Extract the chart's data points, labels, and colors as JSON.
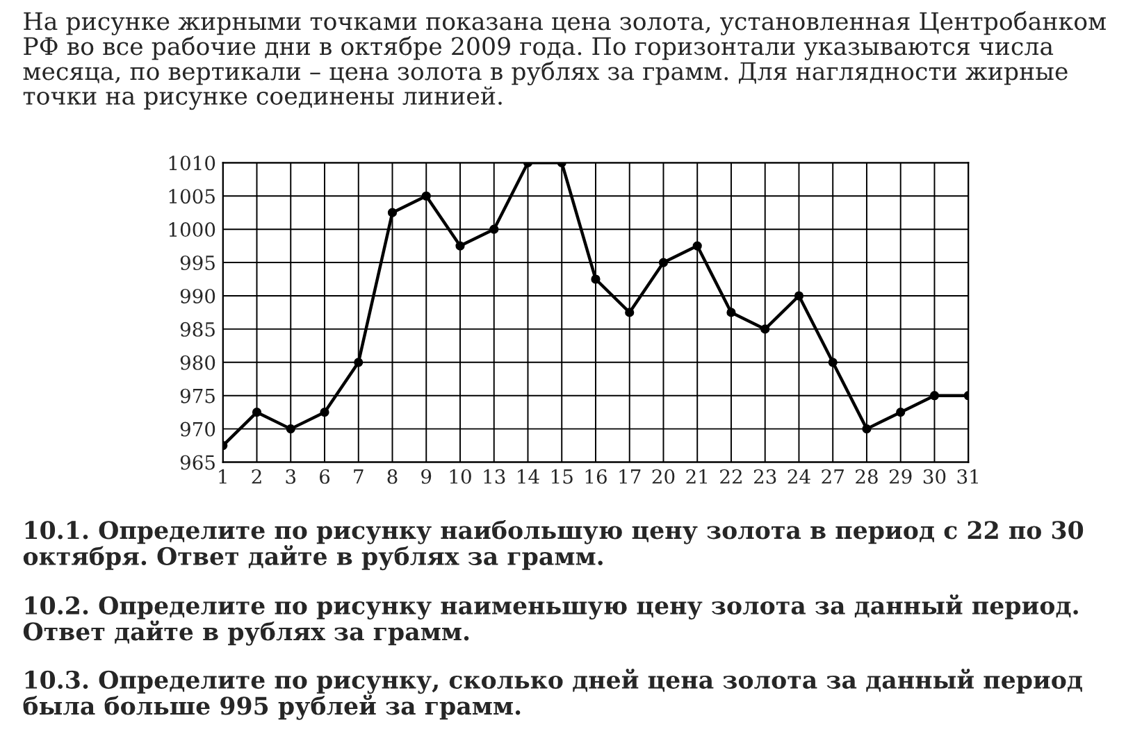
{
  "chart_data": {
    "type": "line",
    "title": "На рисунке жирными точками показана цена золота, установленная Центробанком РФ во все рабочие дни в октябре 2009 года. По горизонтали указываются числа месяца, по вертикали – цена золота в рублях за грамм. Для наглядности жирные точки на рисунке соединены линией.",
    "categories": [
      "1",
      "2",
      "3",
      "6",
      "7",
      "8",
      "9",
      "10",
      "13",
      "14",
      "15",
      "16",
      "17",
      "20",
      "21",
      "22",
      "23",
      "24",
      "27",
      "28",
      "29",
      "30",
      "31"
    ],
    "series": [
      {
        "color": "#000000",
        "values": [
          967.5,
          972.5,
          970,
          972.5,
          980,
          1002.5,
          1005,
          997.5,
          1000,
          1010,
          1010,
          992.5,
          987.5,
          995,
          997.5,
          987.5,
          985,
          990,
          980,
          970,
          972.5,
          975,
          975
        ]
      }
    ],
    "ylim": [
      965,
      1010
    ],
    "yticks": [
      965,
      970,
      975,
      980,
      985,
      990,
      995,
      1000,
      1005,
      1010
    ],
    "grid": true,
    "marker": "circle",
    "line_style": "solid",
    "annotations": [
      "10.1. Определите по рисунку наибольшую цену золота в период с 22 по 30 октября. Ответ дайте в рублях за грамм.",
      "10.2. Определите по рисунку наименьшую цену золота за данный период. Ответ дайте в рублях за грамм.",
      "10.3. Определите по рисунку, сколько дней цена золота за данный период была больше 995 рублей за грамм."
    ]
  }
}
